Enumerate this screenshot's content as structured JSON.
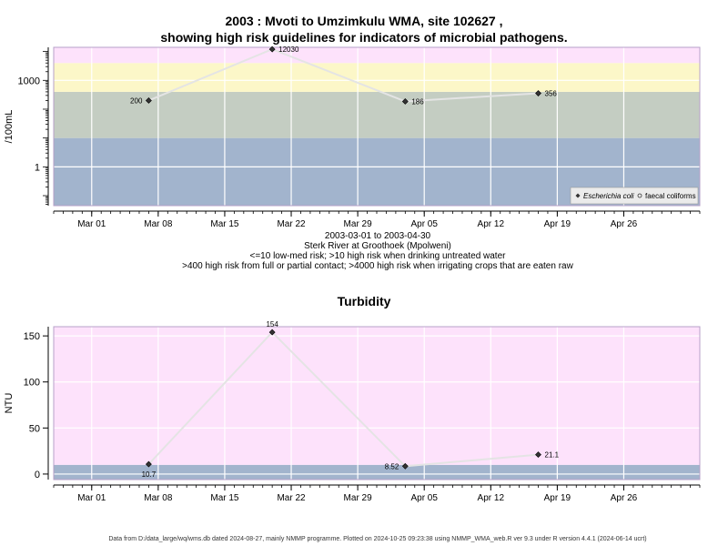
{
  "header": {
    "title_line1": "2003 : Mvoti to Umzimkulu WMA, site 102627 ,",
    "title_line2": "showing high risk guidelines for indicators of microbial pathogens."
  },
  "info": {
    "date_range": "2003-03-01 to 2003-04-30",
    "site_name": "Sterk River at Groothoek (Mpolweni)",
    "guideline_1": "<=10 low-med risk; >10 high risk when drinking untreated water",
    "guideline_2": ">400 high risk from full or partial contact; >4000 high risk when irrigating crops that are eaten raw"
  },
  "footer": {
    "text": "Data from D:/data_large/wq/wms.db dated 2024-08-27, mainly NMMP programme. Plotted on 2024-10-25 09:23:38 using NMMP_WMA_web.R ver 9.3 under R version 4.4.1 (2024-06-14 ucrt)"
  },
  "chart_data": [
    {
      "type": "line",
      "title": "",
      "xlabel": "",
      "ylabel": "/100mL",
      "yscale": "log10",
      "ylim": [
        0.045,
        14000
      ],
      "xlim": [
        "2003-02-25",
        "2003-05-04"
      ],
      "x_ticks": [
        "Mar 01",
        "Mar 08",
        "Mar 15",
        "Mar 22",
        "Mar 29",
        "Apr 05",
        "Apr 12",
        "Apr 19",
        "Apr 26"
      ],
      "x_tick_dates": [
        "2003-03-01",
        "2003-03-08",
        "2003-03-15",
        "2003-03-22",
        "2003-03-29",
        "2003-04-05",
        "2003-04-12",
        "2003-04-19",
        "2003-04-26"
      ],
      "y_ticks": [
        1,
        1000
      ],
      "y_tick_labels": [
        "1",
        "1000"
      ],
      "bands": [
        {
          "from": 0.045,
          "to": 10,
          "color": "#a2b4cd"
        },
        {
          "from": 10,
          "to": 400,
          "color": "#c4cdc2"
        },
        {
          "from": 400,
          "to": 4000,
          "color": "#fcf7c8"
        },
        {
          "from": 4000,
          "to": 14000,
          "color": "#fde2fb"
        }
      ],
      "series": [
        {
          "name": "Escherichia coli",
          "marker": "filled-diamond",
          "points": [
            {
              "x": "2003-03-07",
              "y": 200,
              "label": "200"
            },
            {
              "x": "2003-03-20",
              "y": 12030,
              "label": "12030"
            },
            {
              "x": "2003-04-03",
              "y": 186,
              "label": "186"
            },
            {
              "x": "2003-04-17",
              "y": 356,
              "label": "356"
            }
          ]
        }
      ],
      "legend": {
        "position": "bottom-right",
        "entries": [
          {
            "label": "Escherichia coli",
            "marker": "filled-diamond",
            "italic": true
          },
          {
            "label": "faecal coliforms",
            "marker": "open-circle",
            "italic": false
          }
        ]
      },
      "grid": true
    },
    {
      "type": "line",
      "title": "Turbidity",
      "xlabel": "",
      "ylabel": "NTU",
      "yscale": "linear",
      "ylim": [
        -6,
        160
      ],
      "xlim": [
        "2003-02-25",
        "2003-05-04"
      ],
      "x_ticks": [
        "Mar 01",
        "Mar 08",
        "Mar 15",
        "Mar 22",
        "Mar 29",
        "Apr 05",
        "Apr 12",
        "Apr 19",
        "Apr 26"
      ],
      "x_tick_dates": [
        "2003-03-01",
        "2003-03-08",
        "2003-03-15",
        "2003-03-22",
        "2003-03-29",
        "2003-04-05",
        "2003-04-12",
        "2003-04-19",
        "2003-04-26"
      ],
      "y_ticks": [
        0,
        50,
        100,
        150
      ],
      "y_tick_labels": [
        "0",
        "50",
        "100",
        "150"
      ],
      "bands": [
        {
          "from": -6,
          "to": 10,
          "color": "#a2b4cd"
        },
        {
          "from": 10,
          "to": 160,
          "color": "#fde2fb"
        }
      ],
      "series": [
        {
          "name": "",
          "marker": "filled-diamond",
          "points": [
            {
              "x": "2003-03-07",
              "y": 10.7,
              "label": "10.7",
              "label_pos": "below"
            },
            {
              "x": "2003-03-20",
              "y": 154,
              "label": "154",
              "label_pos": "above"
            },
            {
              "x": "2003-04-03",
              "y": 8.52,
              "label": "8.52",
              "label_pos": "left"
            },
            {
              "x": "2003-04-17",
              "y": 21.1,
              "label": "21.1",
              "label_pos": "right"
            }
          ]
        }
      ],
      "grid": true
    }
  ]
}
